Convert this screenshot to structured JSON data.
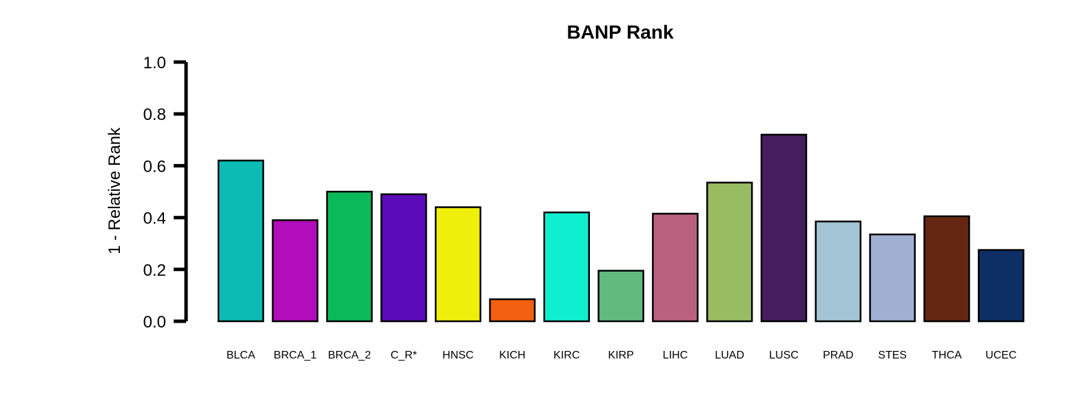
{
  "chart_data": {
    "type": "bar",
    "title": "BANP Rank",
    "xlabel": "",
    "ylabel": "1 - Relative Rank",
    "ylim": [
      0,
      1
    ],
    "yticks": [
      "0.0",
      "0.2",
      "0.4",
      "0.6",
      "0.8",
      "1.0"
    ],
    "categories": [
      "BLCA",
      "BRCA_1",
      "BRCA_2",
      "C_R*",
      "HNSC",
      "KICH",
      "KIRC",
      "KIRP",
      "LIHC",
      "LUAD",
      "LUSC",
      "PRAD",
      "STES",
      "THCA",
      "UCEC"
    ],
    "values": [
      0.62,
      0.39,
      0.5,
      0.49,
      0.44,
      0.085,
      0.42,
      0.195,
      0.415,
      0.535,
      0.72,
      0.385,
      0.335,
      0.405,
      0.275
    ],
    "colors": [
      "#0bbbb4",
      "#b20cbb",
      "#0aba5a",
      "#5c0bba",
      "#eef00c",
      "#f36010",
      "#0fefd0",
      "#62ba7e",
      "#bb6180",
      "#98bc62",
      "#461d5e",
      "#a2c4d4",
      "#a0afd2",
      "#662712",
      "#0e2f66"
    ],
    "grid": false,
    "legend": "none"
  }
}
